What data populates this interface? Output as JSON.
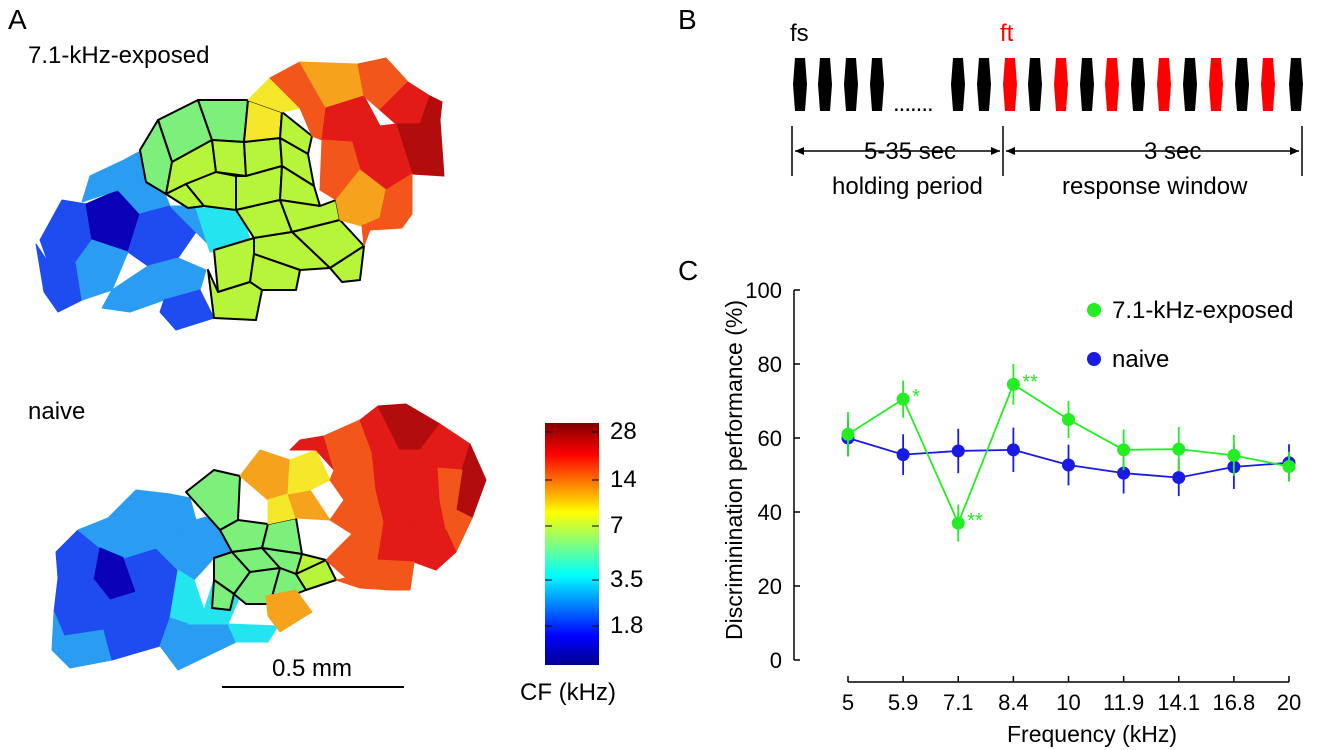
{
  "panels": {
    "a": "A",
    "b": "B",
    "c": "C"
  },
  "panel_a": {
    "exposed_label": "7.1-kHz-exposed",
    "naive_label": "naive",
    "scale_bar": "0.5 mm",
    "colorbar_ticks": [
      "28",
      "14",
      "7",
      "3.5",
      "1.8"
    ],
    "colorbar_title": "CF (kHz)",
    "colors": {
      "dark_blue": "#0a00b8",
      "blue": "#1e4cf0",
      "light_blue": "#2a9df2",
      "cyan": "#23e4ef",
      "green": "#7cf07a",
      "yellow_green": "#b7f53a",
      "yellow": "#f5e82a",
      "orange": "#f7a21c",
      "red_orange": "#f2561a",
      "red": "#e21a18",
      "dark_red": "#b20c0c"
    }
  },
  "panel_b": {
    "fs_label": "fs",
    "ft_label": "ft",
    "ellipsis": ".......",
    "holding_duration": "5-35 sec",
    "holding_label": "holding period",
    "response_duration": "3 sec",
    "response_label": "response window",
    "colors": {
      "standard": "#000000",
      "target": "#ff0000"
    }
  },
  "chart_data": {
    "type": "line",
    "title": "",
    "xlabel": "Frequency (kHz)",
    "ylabel": "Discriminination performance (%)",
    "categories": [
      "5",
      "5.9",
      "7.1",
      "8.4",
      "10",
      "11.9",
      "14.1",
      "16.8",
      "20"
    ],
    "ylim": [
      0,
      100
    ],
    "yticks": [
      0,
      20,
      40,
      60,
      80,
      100
    ],
    "grid": false,
    "legend_position": "top-right",
    "series": [
      {
        "name": "7.1-kHz-exposed",
        "color": "#22ee22",
        "values": [
          61,
          70.5,
          37,
          74.5,
          65,
          56.8,
          57,
          55.3,
          52.3
        ],
        "errors": [
          6,
          5,
          5,
          5.5,
          5,
          5.5,
          6,
          5.5,
          4
        ],
        "annotations": [
          "",
          "*",
          "**",
          "**",
          "",
          "",
          "",
          "",
          ""
        ]
      },
      {
        "name": "naive",
        "color": "#1a1ae6",
        "values": [
          60,
          55.5,
          56.5,
          56.8,
          52.7,
          50.5,
          49.3,
          52.2,
          53.3
        ],
        "errors": [
          5,
          5.5,
          6,
          6,
          5.5,
          5.5,
          5,
          6,
          5
        ]
      }
    ]
  }
}
